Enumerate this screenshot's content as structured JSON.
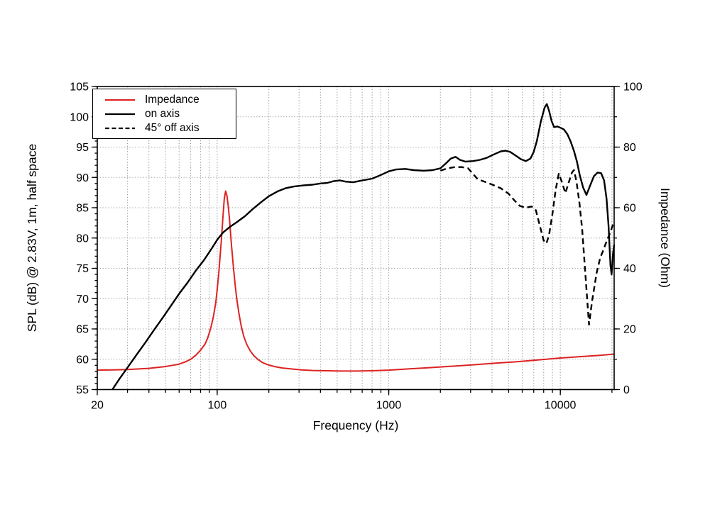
{
  "figure": {
    "x_title": "Frequency (Hz)",
    "y_left_title": "SPL (dB) @ 2.83V, 1m, half space",
    "y_right_title": "Impedance (Ohm)"
  },
  "chart_data": {
    "type": "line",
    "title": "",
    "grid": "dotted",
    "grid_color": "#999999",
    "legend_position": "top-left",
    "x_axis": {
      "label": "Frequency (Hz)",
      "scale": "log",
      "min": 20,
      "max": 20600,
      "tick_values": [
        20,
        100,
        1000,
        10000
      ],
      "tick_labels": [
        "20",
        "100",
        "1000",
        "10000"
      ],
      "gridline_values": [
        30,
        40,
        50,
        60,
        70,
        80,
        90,
        100,
        200,
        300,
        400,
        500,
        600,
        700,
        800,
        900,
        1000,
        2000,
        3000,
        4000,
        5000,
        6000,
        7000,
        8000,
        9000,
        10000,
        20000
      ]
    },
    "y_left": {
      "label": "SPL (dB) @ 2.83V, 1m, half space",
      "min": 55,
      "max": 105,
      "tick_values": [
        55,
        60,
        65,
        70,
        75,
        80,
        85,
        90,
        95,
        100,
        105
      ],
      "minor_tick_step": 1,
      "gridline_values": [
        60,
        65,
        70,
        75,
        80,
        85,
        90,
        95,
        100
      ]
    },
    "y_right": {
      "label": "Impedance (Ohm)",
      "min": 0,
      "max": 100,
      "tick_values": [
        0,
        20,
        40,
        60,
        80,
        100
      ],
      "minor_tick_step": 10
    },
    "series": [
      {
        "name": "Impedance",
        "axis": "right",
        "color": "#dd2222",
        "style": "solid",
        "unit": "Ohm",
        "points": [
          [
            20,
            6.4
          ],
          [
            25,
            6.5
          ],
          [
            30,
            6.6
          ],
          [
            35,
            6.8
          ],
          [
            40,
            7.0
          ],
          [
            45,
            7.3
          ],
          [
            50,
            7.6
          ],
          [
            55,
            8.0
          ],
          [
            60,
            8.4
          ],
          [
            65,
            9.1
          ],
          [
            70,
            10.0
          ],
          [
            75,
            11.3
          ],
          [
            80,
            13.0
          ],
          [
            85,
            15.0
          ],
          [
            88,
            17.0
          ],
          [
            92,
            20.5
          ],
          [
            95,
            24.0
          ],
          [
            98,
            28.5
          ],
          [
            100,
            33.0
          ],
          [
            102,
            38.0
          ],
          [
            104,
            44.0
          ],
          [
            106,
            50.0
          ],
          [
            108,
            57.0
          ],
          [
            110,
            63.0
          ],
          [
            112,
            65.5
          ],
          [
            114,
            64.0
          ],
          [
            116,
            60.5
          ],
          [
            118,
            56.0
          ],
          [
            121,
            48.0
          ],
          [
            124,
            41.0
          ],
          [
            127,
            35.0
          ],
          [
            130,
            30.0
          ],
          [
            134,
            25.0
          ],
          [
            138,
            21.0
          ],
          [
            143,
            17.5
          ],
          [
            149,
            14.8
          ],
          [
            156,
            12.7
          ],
          [
            164,
            11.1
          ],
          [
            173,
            9.9
          ],
          [
            184,
            8.9
          ],
          [
            197,
            8.2
          ],
          [
            215,
            7.6
          ],
          [
            240,
            7.1
          ],
          [
            270,
            6.8
          ],
          [
            310,
            6.5
          ],
          [
            360,
            6.3
          ],
          [
            430,
            6.2
          ],
          [
            520,
            6.1
          ],
          [
            650,
            6.1
          ],
          [
            800,
            6.2
          ],
          [
            1000,
            6.4
          ],
          [
            1300,
            6.8
          ],
          [
            1700,
            7.2
          ],
          [
            2200,
            7.6
          ],
          [
            3000,
            8.1
          ],
          [
            4200,
            8.7
          ],
          [
            5600,
            9.2
          ],
          [
            7500,
            9.8
          ],
          [
            10000,
            10.4
          ],
          [
            13500,
            10.9
          ],
          [
            17000,
            11.3
          ],
          [
            20600,
            11.7
          ]
        ]
      },
      {
        "name": "on axis",
        "axis": "left",
        "color": "#000000",
        "style": "solid",
        "unit": "dB",
        "points": [
          [
            24.5,
            55.0
          ],
          [
            27,
            56.8
          ],
          [
            30,
            58.6
          ],
          [
            34,
            60.8
          ],
          [
            38,
            62.7
          ],
          [
            43,
            64.9
          ],
          [
            48,
            66.8
          ],
          [
            54,
            68.9
          ],
          [
            60,
            70.8
          ],
          [
            67,
            72.6
          ],
          [
            75,
            74.6
          ],
          [
            84,
            76.4
          ],
          [
            94,
            78.5
          ],
          [
            100,
            79.7
          ],
          [
            108,
            80.9
          ],
          [
            118,
            81.8
          ],
          [
            130,
            82.6
          ],
          [
            145,
            83.6
          ],
          [
            160,
            84.7
          ],
          [
            180,
            85.9
          ],
          [
            200,
            86.9
          ],
          [
            225,
            87.7
          ],
          [
            250,
            88.2
          ],
          [
            280,
            88.5
          ],
          [
            320,
            88.7
          ],
          [
            360,
            88.8
          ],
          [
            400,
            89.0
          ],
          [
            440,
            89.1
          ],
          [
            480,
            89.4
          ],
          [
            520,
            89.5
          ],
          [
            560,
            89.3
          ],
          [
            620,
            89.2
          ],
          [
            700,
            89.5
          ],
          [
            800,
            89.8
          ],
          [
            900,
            90.4
          ],
          [
            1000,
            91.0
          ],
          [
            1100,
            91.3
          ],
          [
            1250,
            91.4
          ],
          [
            1400,
            91.2
          ],
          [
            1600,
            91.1
          ],
          [
            1800,
            91.2
          ],
          [
            2000,
            91.5
          ],
          [
            2150,
            92.3
          ],
          [
            2300,
            93.1
          ],
          [
            2450,
            93.4
          ],
          [
            2600,
            92.9
          ],
          [
            2800,
            92.6
          ],
          [
            3100,
            92.7
          ],
          [
            3400,
            92.9
          ],
          [
            3700,
            93.2
          ],
          [
            4100,
            93.8
          ],
          [
            4500,
            94.3
          ],
          [
            4800,
            94.4
          ],
          [
            5100,
            94.2
          ],
          [
            5500,
            93.6
          ],
          [
            5900,
            93.0
          ],
          [
            6300,
            92.7
          ],
          [
            6700,
            93.1
          ],
          [
            7000,
            94.2
          ],
          [
            7300,
            96.0
          ],
          [
            7700,
            99.2
          ],
          [
            8100,
            101.5
          ],
          [
            8350,
            102.1
          ],
          [
            8600,
            101.0
          ],
          [
            8900,
            99.3
          ],
          [
            9200,
            98.3
          ],
          [
            9600,
            98.4
          ],
          [
            10000,
            98.2
          ],
          [
            10500,
            97.9
          ],
          [
            11000,
            97.1
          ],
          [
            11500,
            95.9
          ],
          [
            12000,
            94.4
          ],
          [
            12500,
            92.6
          ],
          [
            13000,
            90.3
          ],
          [
            13600,
            88.3
          ],
          [
            14200,
            87.1
          ],
          [
            14900,
            88.6
          ],
          [
            15700,
            90.2
          ],
          [
            16500,
            90.8
          ],
          [
            17300,
            90.7
          ],
          [
            18000,
            89.5
          ],
          [
            18600,
            86.5
          ],
          [
            19100,
            82.0
          ],
          [
            19600,
            75.5
          ],
          [
            19900,
            74.0
          ],
          [
            20300,
            77.5
          ],
          [
            20600,
            78.9
          ]
        ]
      },
      {
        "name": "45° off axis",
        "axis": "left",
        "color": "#000000",
        "style": "dashed",
        "unit": "dB",
        "points": [
          [
            2000,
            91.1
          ],
          [
            2200,
            91.5
          ],
          [
            2430,
            91.7
          ],
          [
            2670,
            91.7
          ],
          [
            2900,
            91.5
          ],
          [
            3300,
            89.7
          ],
          [
            3700,
            89.2
          ],
          [
            4100,
            88.7
          ],
          [
            4500,
            88.2
          ],
          [
            5000,
            87.3
          ],
          [
            5400,
            86.2
          ],
          [
            5800,
            85.3
          ],
          [
            6300,
            85.0
          ],
          [
            6800,
            85.2
          ],
          [
            7200,
            84.6
          ],
          [
            7600,
            82.0
          ],
          [
            8000,
            79.6
          ],
          [
            8300,
            79.1
          ],
          [
            8600,
            80.5
          ],
          [
            9000,
            84.0
          ],
          [
            9400,
            88.0
          ],
          [
            9800,
            90.6
          ],
          [
            10200,
            89.3
          ],
          [
            10700,
            87.4
          ],
          [
            11200,
            89.2
          ],
          [
            11700,
            90.8
          ],
          [
            12000,
            91.2
          ],
          [
            12400,
            89.5
          ],
          [
            12900,
            86.0
          ],
          [
            13400,
            81.5
          ],
          [
            14000,
            74.0
          ],
          [
            14700,
            65.7
          ],
          [
            15300,
            69.5
          ],
          [
            16300,
            74.3
          ],
          [
            17100,
            76.8
          ],
          [
            17700,
            77.8
          ],
          [
            18700,
            79.6
          ],
          [
            19500,
            80.8
          ],
          [
            20300,
            82.3
          ],
          [
            20600,
            82.6
          ]
        ]
      }
    ]
  }
}
